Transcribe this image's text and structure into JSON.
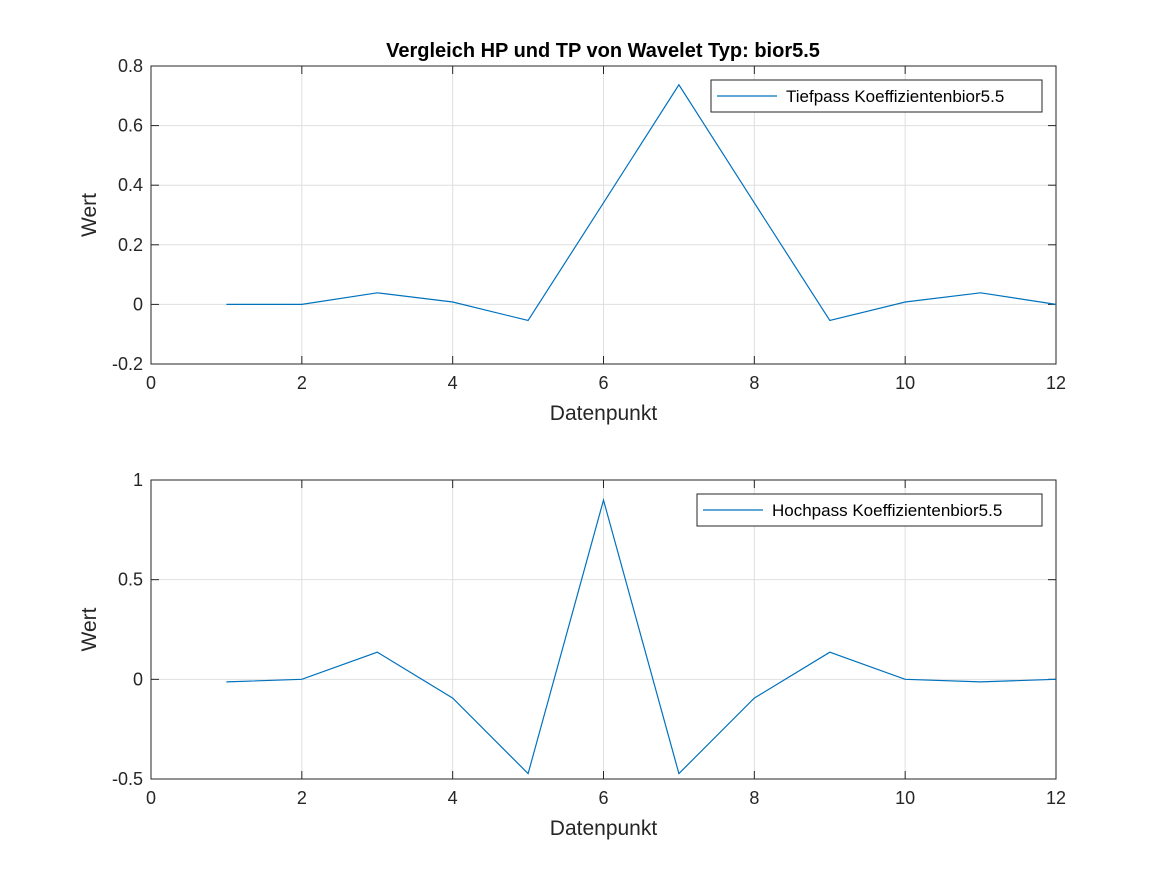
{
  "chart_data": [
    {
      "type": "line",
      "title": "Vergleich HP und TP von Wavelet Typ: bior5.5",
      "xlabel": "Datenpunkt",
      "ylabel": "Wert",
      "xlim": [
        0,
        12
      ],
      "ylim": [
        -0.2,
        0.8
      ],
      "xticks": [
        "0",
        "2",
        "4",
        "6",
        "8",
        "10",
        "12"
      ],
      "yticks": [
        "-0.2",
        "0",
        "0.2",
        "0.4",
        "0.6",
        "0.8"
      ],
      "grid": true,
      "legend_position": "top-right",
      "series": [
        {
          "name": "Tiefpass Koeffizientenbior5.5",
          "color": "#0072BD",
          "x": [
            1,
            2,
            3,
            4,
            5,
            6,
            7,
            8,
            9,
            10,
            11,
            12
          ],
          "y": [
            0,
            0,
            0.039,
            0.008,
            -0.054,
            0.341,
            0.737,
            0.341,
            -0.054,
            0.008,
            0.039,
            0
          ]
        }
      ]
    },
    {
      "type": "line",
      "title": "",
      "xlabel": "Datenpunkt",
      "ylabel": "Wert",
      "xlim": [
        0,
        12
      ],
      "ylim": [
        -0.5,
        1
      ],
      "xticks": [
        "0",
        "2",
        "4",
        "6",
        "8",
        "10",
        "12"
      ],
      "yticks": [
        "-0.5",
        "0",
        "0.5",
        "1"
      ],
      "grid": true,
      "legend_position": "top-right",
      "series": [
        {
          "name": "Hochpass Koeffizientenbior5.5",
          "color": "#0072BD",
          "x": [
            1,
            2,
            3,
            4,
            5,
            6,
            7,
            8,
            9,
            10,
            11,
            12
          ],
          "y": [
            -0.013,
            0,
            0.136,
            -0.094,
            -0.473,
            0.899,
            -0.473,
            -0.094,
            0.136,
            0,
            -0.013,
            0
          ]
        }
      ]
    }
  ]
}
